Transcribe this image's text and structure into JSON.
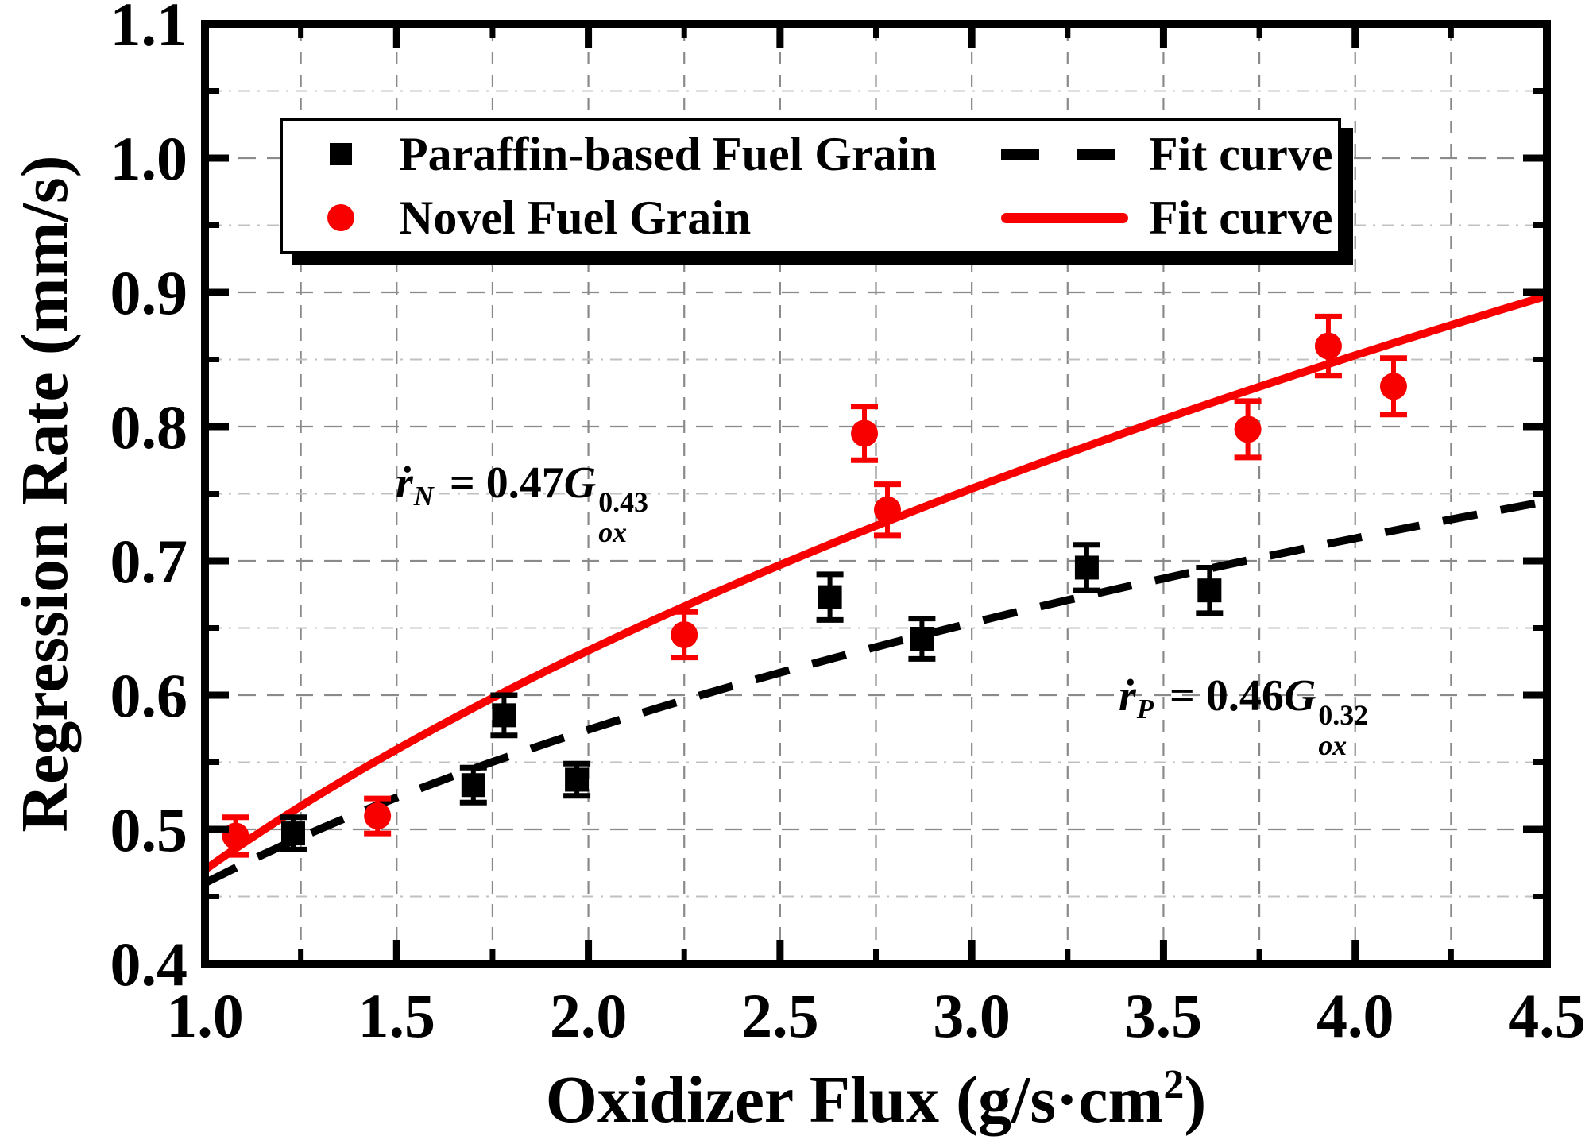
{
  "colors": {
    "red": "#f80000",
    "black": "#000000",
    "grid_major": "#8a8a8a",
    "grid_minor": "#c0c0c0",
    "background": "#ffffff"
  },
  "chart_data": {
    "type": "scatter",
    "title": "",
    "x_axis": {
      "label": "Oxidizer Flux (g/s·cm²)",
      "label_main": "Oxidizer Flux (g/s·cm",
      "label_superscript": "2",
      "label_suffix": ")",
      "min": 1.0,
      "max": 4.5,
      "major_tick_step": 0.5,
      "minor_tick_step": 0.25,
      "tick_labels": [
        "1.0",
        "1.5",
        "2.0",
        "2.5",
        "3.0",
        "3.5",
        "4.0",
        "4.5"
      ]
    },
    "y_axis": {
      "label": "Regression Rate (mm/s)",
      "min": 0.4,
      "max": 1.1,
      "major_tick_step": 0.1,
      "minor_tick_step": 0.05,
      "tick_labels": [
        "0.4",
        "0.5",
        "0.6",
        "0.7",
        "0.8",
        "0.9",
        "1.0",
        "1.1"
      ]
    },
    "grid": {
      "vertical_step": 0.25,
      "horizontal_major_step": 0.1,
      "horizontal_minor_step": 0.05
    },
    "series": [
      {
        "name": "Paraffin-based Fuel Grain",
        "marker": "square",
        "color": "#000000",
        "points": [
          [
            1.23,
            0.497,
            0.012
          ],
          [
            1.7,
            0.533,
            0.013
          ],
          [
            1.78,
            0.585,
            0.015
          ],
          [
            1.97,
            0.537,
            0.012
          ],
          [
            2.63,
            0.673,
            0.017
          ],
          [
            2.87,
            0.642,
            0.015
          ],
          [
            3.3,
            0.695,
            0.017
          ],
          [
            3.62,
            0.678,
            0.017
          ]
        ]
      },
      {
        "name": "Novel Fuel Grain",
        "marker": "circle",
        "color": "#f80000",
        "points": [
          [
            1.08,
            0.495,
            0.014
          ],
          [
            1.45,
            0.51,
            0.013
          ],
          [
            2.25,
            0.645,
            0.017
          ],
          [
            2.72,
            0.795,
            0.02
          ],
          [
            2.78,
            0.738,
            0.019
          ],
          [
            3.72,
            0.798,
            0.021
          ],
          [
            3.93,
            0.86,
            0.022
          ],
          [
            4.1,
            0.83,
            0.021
          ]
        ]
      }
    ],
    "fit_curves": [
      {
        "name": "Fit curve",
        "for_series": "Paraffin-based Fuel Grain",
        "coefficient": 0.46,
        "exponent": 0.32,
        "style": "dashed",
        "color": "#000000",
        "equation": "ṙ_P = 0.46·G_ox^0.32"
      },
      {
        "name": "Fit curve",
        "for_series": "Novel Fuel Grain",
        "coefficient": 0.47,
        "exponent": 0.43,
        "style": "solid",
        "color": "#f80000",
        "equation": "ṙ_N = 0.47·G_ox^0.43"
      }
    ],
    "legend": {
      "position": "top-center",
      "entries": [
        {
          "marker": "square",
          "marker_color": "#000000",
          "label": "Paraffin-based Fuel Grain",
          "line": "dashed",
          "line_color": "#000000",
          "fit_label": "Fit curve"
        },
        {
          "marker": "circle",
          "marker_color": "#f80000",
          "label": "Novel Fuel Grain",
          "line": "solid",
          "line_color": "#f80000",
          "fit_label": "Fit curve"
        }
      ]
    },
    "annotations": [
      {
        "id": "novel-fit-equation",
        "lhs_base": "ṙ",
        "lhs_sub": "N",
        "equals_coef": " = 0.47",
        "base": "G",
        "base_sub": "ox",
        "exponent": "0.43"
      },
      {
        "id": "paraffin-fit-equation",
        "lhs_base": "ṙ",
        "lhs_sub": "P",
        "equals_coef": " = 0.46",
        "base": "G",
        "base_sub": "ox",
        "exponent": "0.32"
      }
    ]
  }
}
